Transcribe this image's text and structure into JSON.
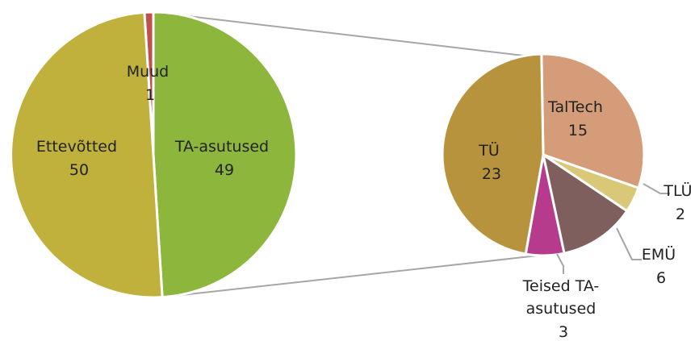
{
  "chart_data": {
    "type": "pie",
    "title": "",
    "main_pie": {
      "slices": [
        {
          "label": "Muud",
          "value": 1,
          "color": "#c0504d"
        },
        {
          "label": "TA-asutused",
          "value": 49,
          "color": "#8db63c"
        },
        {
          "label": "Ettevõtted",
          "value": 50,
          "color": "#bfb13b"
        }
      ]
    },
    "secondary_pie": {
      "breakdown_of": "TA-asutused",
      "slices": [
        {
          "label": "TalTech",
          "value": 15,
          "color": "#d49c78"
        },
        {
          "label": "TLÜ",
          "value": 2,
          "color": "#d8c878"
        },
        {
          "label": "EMÜ",
          "value": 6,
          "color": "#7e5f5d"
        },
        {
          "label": "Teised TA-asutused",
          "label_lines": [
            "Teised TA-",
            "asutused"
          ],
          "value": 3,
          "color": "#b63b8c"
        },
        {
          "label": "TÜ",
          "value": 23,
          "color": "#b8933d"
        }
      ]
    }
  }
}
